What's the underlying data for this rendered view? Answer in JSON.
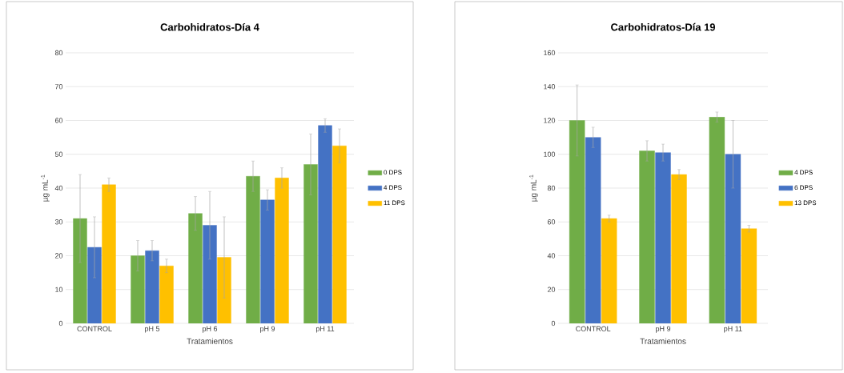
{
  "chart_data": [
    {
      "type": "bar",
      "title": "Carbohidratos-Día 4",
      "xlabel": "Tratamientos",
      "ylabel": "µg mL$^{-1}$",
      "categories": [
        "CONTROL",
        "pH 5",
        "pH 6",
        "pH 9",
        "pH 11"
      ],
      "series": [
        {
          "name": "0 DPS",
          "color": "#70ad47",
          "values": [
            31,
            20,
            32.5,
            43.5,
            47
          ],
          "errors": [
            13,
            4.5,
            5,
            4.5,
            9
          ]
        },
        {
          "name": "4 DPS",
          "color": "#4472c4",
          "values": [
            22.5,
            21.5,
            29,
            36.5,
            58.5
          ],
          "errors": [
            9,
            3,
            10,
            3,
            2
          ]
        },
        {
          "name": "11 DPS",
          "color": "#ffc000",
          "values": [
            41,
            17,
            19.5,
            43,
            52.5
          ],
          "errors": [
            2,
            2,
            12,
            3,
            5
          ]
        }
      ],
      "ylim": [
        0,
        80
      ],
      "yticks": [
        0,
        10,
        20,
        30,
        40,
        50,
        60,
        70,
        80
      ],
      "grid": "y",
      "legend": "right"
    },
    {
      "type": "bar",
      "title": "Carbohidratos-Día 19",
      "xlabel": "Tratamientos",
      "ylabel": "µg mL$^{-1}$",
      "categories": [
        "CONTROL",
        "pH 9",
        "pH 11"
      ],
      "series": [
        {
          "name": "4 DPS",
          "color": "#70ad47",
          "values": [
            120,
            102,
            122
          ],
          "errors": [
            21,
            6,
            3
          ]
        },
        {
          "name": "6 DPS",
          "color": "#4472c4",
          "values": [
            110,
            101,
            100
          ],
          "errors": [
            6,
            5,
            20
          ]
        },
        {
          "name": "13 DPS",
          "color": "#ffc000",
          "values": [
            62,
            88,
            56
          ],
          "errors": [
            2,
            3,
            2
          ]
        }
      ],
      "ylim": [
        0,
        160
      ],
      "yticks": [
        0,
        20,
        40,
        60,
        80,
        100,
        120,
        140,
        160
      ],
      "grid": "y",
      "legend": "right"
    }
  ]
}
